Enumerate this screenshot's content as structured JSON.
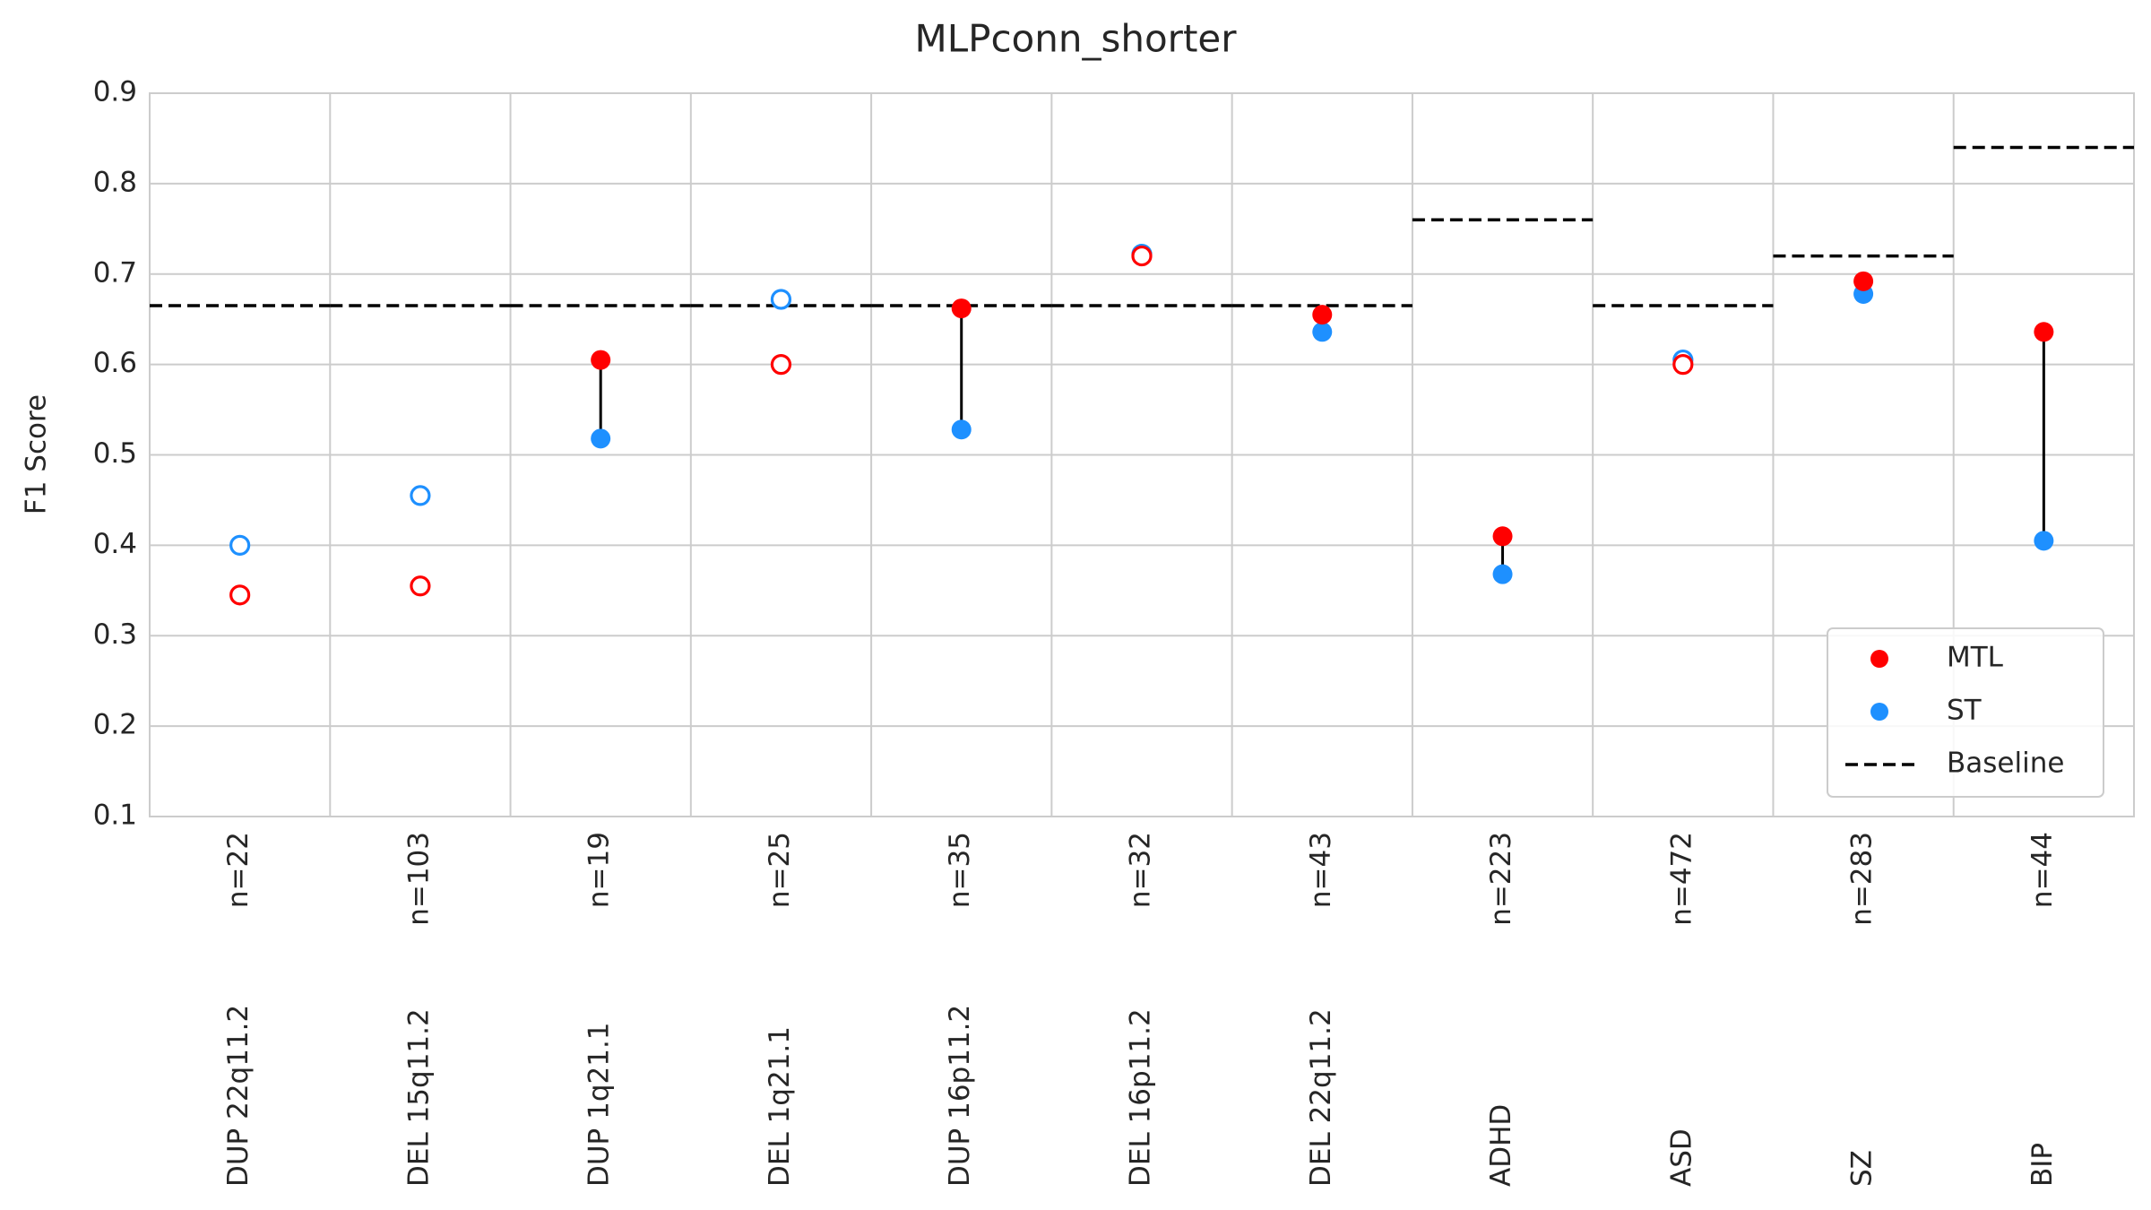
{
  "chart_data": {
    "type": "dumbbell",
    "title": "MLPconn_shorter",
    "y_label": "F1 Score",
    "categories": [
      "DUP 22q11.2",
      "DEL 15q11.2",
      "DUP 1q21.1",
      "DEL 1q21.1",
      "DUP 16p11.2",
      "DEL 16p11.2",
      "DEL 22q11.2",
      "ADHD",
      "ASD",
      "SZ",
      "BIP"
    ],
    "sample_sizes": [
      "n=22",
      "n=103",
      "n=19",
      "n=25",
      "n=35",
      "n=32",
      "n=43",
      "n=223",
      "n=472",
      "n=283",
      "n=44"
    ],
    "series": [
      {
        "name": "MTL",
        "color": "#ff0000",
        "values": [
          0.345,
          0.355,
          0.605,
          0.6,
          0.662,
          0.72,
          0.655,
          0.41,
          0.6,
          0.692,
          0.636
        ],
        "filled": [
          false,
          false,
          true,
          false,
          true,
          false,
          true,
          true,
          false,
          true,
          true
        ]
      },
      {
        "name": "ST",
        "color": "#1e90ff",
        "values": [
          0.4,
          0.455,
          0.518,
          0.672,
          0.528,
          0.722,
          0.636,
          0.368,
          0.605,
          0.678,
          0.405
        ],
        "filled": [
          false,
          false,
          true,
          false,
          true,
          false,
          true,
          true,
          false,
          true,
          true
        ]
      }
    ],
    "baseline": {
      "name": "Baseline",
      "color": "#000000",
      "values": [
        0.665,
        0.665,
        0.665,
        0.665,
        0.665,
        0.665,
        0.665,
        0.76,
        0.665,
        0.72,
        0.84
      ]
    },
    "ylim": [
      0.1,
      0.9
    ],
    "yticks": [
      0.1,
      0.2,
      0.3,
      0.4,
      0.5,
      0.6,
      0.7,
      0.8,
      0.9
    ],
    "grid": true,
    "legend_position": "lower right"
  }
}
